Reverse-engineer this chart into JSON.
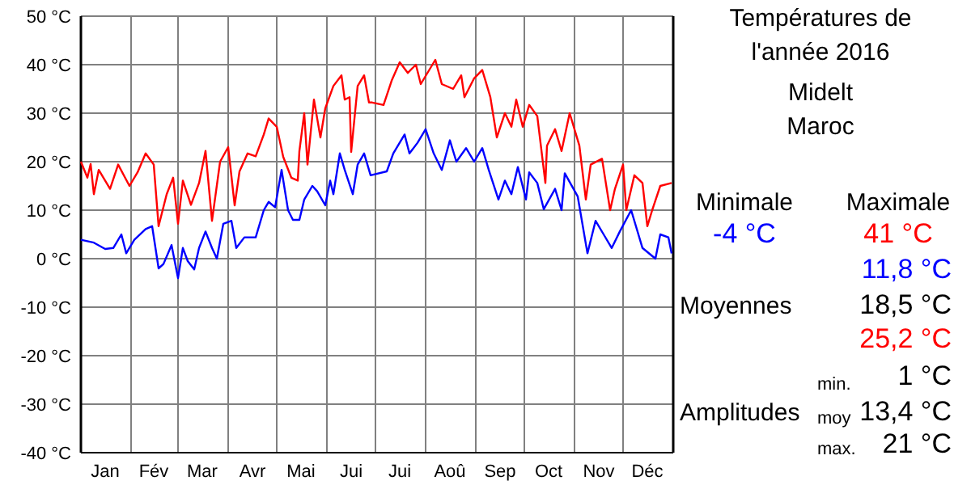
{
  "chart_data": {
    "type": "line",
    "title": "Températures de l'année 2016",
    "subtitle": "Midelt\nMaroc",
    "annotations": [
      "Minimale",
      "-4 °C",
      "Maximale",
      "41 °C",
      "11,8 °C",
      "Moyennes",
      "18,5 °C",
      "25,2 °C",
      "min.",
      "1 °C",
      "Amplitudes",
      "moy",
      "13,4 °C",
      "max.",
      "21 °C"
    ],
    "xlim": [
      "2016-01-01",
      "2017-01-01"
    ],
    "xticks": [
      {
        "value": "2016-02-01",
        "label": null
      },
      {
        "value": "2016-03-01",
        "label": null
      },
      {
        "value": "2016-04-01",
        "label": null
      },
      {
        "value": "2016-05-01",
        "label": null
      },
      {
        "value": "2016-06-01",
        "label": null
      },
      {
        "value": "2016-07-01",
        "label": null
      },
      {
        "value": "2016-08-01",
        "label": null
      },
      {
        "value": "2016-09-01",
        "label": null
      },
      {
        "value": "2016-10-01",
        "label": null
      },
      {
        "value": "2016-11-01",
        "label": null
      },
      {
        "value": "2016-12-01",
        "label": null
      },
      {
        "value": "2016-01-16",
        "label": "Jan"
      },
      {
        "value": "2016-02-15",
        "label": "Fév"
      },
      {
        "value": "2016-03-16",
        "label": "Mar"
      },
      {
        "value": "2016-04-16",
        "label": "Avr"
      },
      {
        "value": "2016-05-16",
        "label": "Mai"
      },
      {
        "value": "2016-06-16",
        "label": "Jui"
      },
      {
        "value": "2016-07-16",
        "label": "Jui"
      },
      {
        "value": "2016-08-16",
        "label": "Aoû"
      },
      {
        "value": "2016-09-16",
        "label": "Sep"
      },
      {
        "value": "2016-10-16",
        "label": "Oct"
      },
      {
        "value": "2016-11-16",
        "label": "Nov"
      },
      {
        "value": "2016-12-16",
        "label": "Déc"
      }
    ],
    "ylim": [
      -40,
      50
    ],
    "yticks": [
      {
        "value": -40,
        "label": "-40 °C"
      },
      {
        "value": -30,
        "label": "-30 °C"
      },
      {
        "value": -20,
        "label": "-20 °C"
      },
      {
        "value": -10,
        "label": "-10 °C"
      },
      {
        "value": 0,
        "label": "0 °C"
      },
      {
        "value": 10,
        "label": "10 °C"
      },
      {
        "value": 20,
        "label": "20 °C"
      },
      {
        "value": 30,
        "label": "30 °C"
      },
      {
        "value": 40,
        "label": "40 °C"
      },
      {
        "value": 50,
        "label": "50 °C"
      }
    ],
    "grid": true,
    "series": [
      {
        "color": "#0000ff",
        "x": [
          "2016-01-01",
          "2016-01-09",
          "2016-01-16",
          "2016-01-21",
          "2016-01-26",
          "2016-01-29",
          "2016-02-03",
          "2016-02-10",
          "2016-02-14",
          "2016-02-18",
          "2016-02-21",
          "2016-02-26",
          "2016-03-01",
          "2016-03-04",
          "2016-03-07",
          "2016-03-11",
          "2016-03-14",
          "2016-03-18",
          "2016-03-22",
          "2016-03-25",
          "2016-03-29",
          "2016-04-03",
          "2016-04-06",
          "2016-04-11",
          "2016-04-18",
          "2016-04-23",
          "2016-04-26",
          "2016-04-30",
          "2016-05-04",
          "2016-05-08",
          "2016-05-11",
          "2016-05-15",
          "2016-05-18",
          "2016-05-23",
          "2016-05-26",
          "2016-05-31",
          "2016-06-03",
          "2016-06-05",
          "2016-06-09",
          "2016-06-12",
          "2016-06-17",
          "2016-06-20",
          "2016-06-24",
          "2016-06-28",
          "2016-07-08",
          "2016-07-12",
          "2016-07-19",
          "2016-07-22",
          "2016-07-27",
          "2016-08-01",
          "2016-08-06",
          "2016-08-11",
          "2016-08-16",
          "2016-08-20",
          "2016-08-26",
          "2016-08-31",
          "2016-09-05",
          "2016-09-09",
          "2016-09-15",
          "2016-09-19",
          "2016-09-23",
          "2016-09-27",
          "2016-10-02",
          "2016-10-04",
          "2016-10-09",
          "2016-10-13",
          "2016-10-20",
          "2016-10-24",
          "2016-10-26",
          "2016-11-03",
          "2016-11-09",
          "2016-11-14",
          "2016-11-19",
          "2016-11-24",
          "2016-11-29",
          "2016-12-06",
          "2016-12-13",
          "2016-12-21",
          "2016-12-24",
          "2016-12-29",
          "2016-12-31"
        ],
        "values": [
          3.9,
          3.3,
          2,
          2.2,
          5,
          1.1,
          3.9,
          6.1,
          6.7,
          -2,
          -1.1,
          2.8,
          -4,
          2.2,
          -0.5,
          -2.2,
          2.2,
          5.6,
          2.2,
          0,
          7.2,
          7.8,
          2.2,
          4.4,
          4.4,
          10,
          11.7,
          10.6,
          18.3,
          10,
          8,
          8,
          12.2,
          15,
          13.9,
          11,
          16.1,
          13.3,
          21.7,
          18.3,
          13.3,
          19.4,
          21.7,
          17.2,
          18,
          21.7,
          25.6,
          21.7,
          23.9,
          26.7,
          21.7,
          18.3,
          24.4,
          20,
          22.8,
          20,
          22.8,
          18.3,
          12.2,
          16.1,
          13.3,
          18.9,
          12.2,
          17.8,
          15.6,
          10.2,
          14.4,
          10,
          17.6,
          12.8,
          1.1,
          7.8,
          5,
          2.2,
          5.6,
          10,
          2.2,
          0,
          5,
          4.4,
          1.1
        ]
      },
      {
        "color": "#ff0000",
        "x": [
          "2016-01-01",
          "2016-01-05",
          "2016-01-07",
          "2016-01-09",
          "2016-01-12",
          "2016-01-19",
          "2016-01-24",
          "2016-01-31",
          "2016-02-05",
          "2016-02-10",
          "2016-02-15",
          "2016-02-18",
          "2016-02-23",
          "2016-02-27",
          "2016-03-01",
          "2016-03-04",
          "2016-03-09",
          "2016-03-14",
          "2016-03-18",
          "2016-03-22",
          "2016-03-27",
          "2016-04-01",
          "2016-04-05",
          "2016-04-08",
          "2016-04-13",
          "2016-04-18",
          "2016-04-23",
          "2016-04-26",
          "2016-05-01",
          "2016-05-05",
          "2016-05-10",
          "2016-05-14",
          "2016-05-15",
          "2016-05-18",
          "2016-05-20",
          "2016-05-24",
          "2016-05-28",
          "2016-05-31",
          "2016-06-05",
          "2016-06-10",
          "2016-06-12",
          "2016-06-15",
          "2016-06-16",
          "2016-06-20",
          "2016-06-24",
          "2016-06-27",
          "2016-06-29",
          "2016-07-06",
          "2016-07-11",
          "2016-07-16",
          "2016-07-21",
          "2016-07-26",
          "2016-07-29",
          "2016-08-07",
          "2016-08-11",
          "2016-08-18",
          "2016-08-23",
          "2016-08-25",
          "2016-08-31",
          "2016-09-05",
          "2016-09-10",
          "2016-09-14",
          "2016-09-19",
          "2016-09-23",
          "2016-09-26",
          "2016-09-30",
          "2016-10-04",
          "2016-10-09",
          "2016-10-14",
          "2016-10-15",
          "2016-10-20",
          "2016-10-24",
          "2016-10-29",
          "2016-11-04",
          "2016-11-08",
          "2016-11-11",
          "2016-11-18",
          "2016-11-23",
          "2016-11-26",
          "2016-12-01",
          "2016-12-03",
          "2016-12-08",
          "2016-12-13",
          "2016-12-16",
          "2016-12-19",
          "2016-12-24",
          "2016-12-31"
        ],
        "values": [
          20,
          16.7,
          19.5,
          13.3,
          18.3,
          14.4,
          19.4,
          15,
          17.8,
          21.7,
          19.4,
          6.7,
          13.3,
          16.7,
          7.2,
          16.1,
          11.1,
          15.6,
          22.2,
          7.8,
          20,
          23,
          11,
          18,
          21.7,
          21.1,
          25.6,
          28.9,
          27.2,
          21,
          16.7,
          16.1,
          22.2,
          30,
          19.4,
          32.8,
          25,
          31,
          35.6,
          37.8,
          32.8,
          33.3,
          22,
          35.6,
          37.8,
          32.2,
          32.2,
          31.7,
          36.7,
          40.5,
          38.3,
          40,
          36,
          41,
          36,
          35,
          37.8,
          33.3,
          37.2,
          38.9,
          33.3,
          25,
          30,
          27.2,
          32.8,
          27.2,
          31.7,
          29.4,
          15.6,
          23.3,
          26.7,
          22.2,
          30,
          23.3,
          12.2,
          19.4,
          20.6,
          10,
          14.4,
          19.4,
          10,
          17.2,
          15.6,
          6.7,
          10,
          15,
          15.6
        ]
      }
    ]
  }
}
